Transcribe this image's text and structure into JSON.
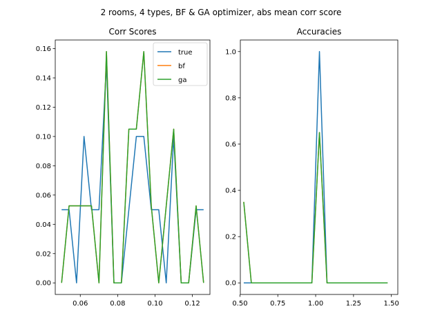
{
  "suptitle": "2 rooms, 4 types, BF & GA optimizer, abs mean corr score",
  "chart_data": [
    {
      "type": "line",
      "title": "Corr Scores",
      "xlim": [
        0.0466,
        0.1294
      ],
      "ylim": [
        -0.0079,
        0.1659
      ],
      "xticks": [
        0.06,
        0.08,
        0.1,
        0.12
      ],
      "xtick_labels": [
        "0.06",
        "0.08",
        "0.10",
        "0.12"
      ],
      "yticks": [
        0.0,
        0.02,
        0.04,
        0.06,
        0.08,
        0.1,
        0.12,
        0.14,
        0.16
      ],
      "ytick_labels": [
        "0.00",
        "0.02",
        "0.04",
        "0.06",
        "0.08",
        "0.10",
        "0.12",
        "0.14",
        "0.16"
      ],
      "legend": "top-right",
      "series": [
        {
          "name": "true",
          "color": "#1f77b4",
          "x": [
            0.05,
            0.054,
            0.058,
            0.062,
            0.066,
            0.07,
            0.074,
            0.078,
            0.082,
            0.086,
            0.09,
            0.094,
            0.098,
            0.102,
            0.106,
            0.11,
            0.114,
            0.118,
            0.122,
            0.126
          ],
          "y": [
            0.05,
            0.05,
            0.0,
            0.1,
            0.05,
            0.05,
            0.15,
            0.0,
            0.0,
            0.05,
            0.1,
            0.1,
            0.05,
            0.05,
            0.0,
            0.1,
            0.0,
            0.0,
            0.05,
            0.05
          ]
        },
        {
          "name": "bf",
          "color": "#ff7f0e",
          "x": [
            0.05,
            0.054,
            0.058,
            0.062,
            0.066,
            0.07,
            0.074,
            0.078,
            0.082,
            0.086,
            0.09,
            0.094,
            0.098,
            0.102,
            0.106,
            0.11,
            0.114,
            0.118,
            0.122,
            0.126
          ],
          "y": [
            0.0,
            0.0526,
            0.0526,
            0.0526,
            0.0526,
            0.0,
            0.158,
            0.0,
            0.0,
            0.105,
            0.105,
            0.158,
            0.0526,
            0.0,
            0.0526,
            0.105,
            0.0,
            0.0,
            0.0526,
            0.0
          ]
        },
        {
          "name": "ga",
          "color": "#2ca02c",
          "x": [
            0.05,
            0.054,
            0.058,
            0.062,
            0.066,
            0.07,
            0.074,
            0.078,
            0.082,
            0.086,
            0.09,
            0.094,
            0.098,
            0.102,
            0.106,
            0.11,
            0.114,
            0.118,
            0.122,
            0.126
          ],
          "y": [
            0.0,
            0.0526,
            0.0526,
            0.0526,
            0.0526,
            0.0,
            0.158,
            0.0,
            0.0,
            0.105,
            0.105,
            0.158,
            0.0526,
            0.0,
            0.0526,
            0.105,
            0.0,
            0.0,
            0.0526,
            0.0
          ]
        }
      ]
    },
    {
      "type": "line",
      "title": "Accuracies",
      "xlim": [
        0.5025,
        1.5425
      ],
      "ylim": [
        -0.05,
        1.05
      ],
      "xticks": [
        0.5,
        0.75,
        1.0,
        1.25,
        1.5
      ],
      "xtick_labels": [
        "0.50",
        "0.75",
        "1.00",
        "1.25",
        "1.50"
      ],
      "yticks": [
        0.0,
        0.2,
        0.4,
        0.6,
        0.8,
        1.0
      ],
      "ytick_labels": [
        "0.0",
        "0.2",
        "0.4",
        "0.6",
        "0.8",
        "1.0"
      ],
      "series": [
        {
          "name": "true",
          "color": "#1f77b4",
          "x": [
            0.525,
            0.575,
            0.625,
            0.675,
            0.725,
            0.775,
            0.825,
            0.875,
            0.925,
            0.975,
            1.025,
            1.075,
            1.125,
            1.175,
            1.225,
            1.275,
            1.325,
            1.375,
            1.425,
            1.475
          ],
          "y": [
            0.0,
            0.0,
            0.0,
            0.0,
            0.0,
            0.0,
            0.0,
            0.0,
            0.0,
            0.0,
            1.0,
            0.0,
            0.0,
            0.0,
            0.0,
            0.0,
            0.0,
            0.0,
            0.0,
            0.0
          ]
        },
        {
          "name": "bf",
          "color": "#ff7f0e",
          "x": [
            0.525,
            0.575,
            0.625,
            0.675,
            0.725,
            0.775,
            0.825,
            0.875,
            0.925,
            0.975,
            1.025,
            1.075,
            1.125,
            1.175,
            1.225,
            1.275,
            1.325,
            1.375,
            1.425,
            1.475
          ],
          "y": [
            0.35,
            0.0,
            0.0,
            0.0,
            0.0,
            0.0,
            0.0,
            0.0,
            0.0,
            0.0,
            0.65,
            0.0,
            0.0,
            0.0,
            0.0,
            0.0,
            0.0,
            0.0,
            0.0,
            0.0
          ]
        },
        {
          "name": "ga",
          "color": "#2ca02c",
          "x": [
            0.525,
            0.575,
            0.625,
            0.675,
            0.725,
            0.775,
            0.825,
            0.875,
            0.925,
            0.975,
            1.025,
            1.075,
            1.125,
            1.175,
            1.225,
            1.275,
            1.325,
            1.375,
            1.425,
            1.475
          ],
          "y": [
            0.35,
            0.0,
            0.0,
            0.0,
            0.0,
            0.0,
            0.0,
            0.0,
            0.0,
            0.0,
            0.65,
            0.0,
            0.0,
            0.0,
            0.0,
            0.0,
            0.0,
            0.0,
            0.0,
            0.0
          ]
        }
      ]
    }
  ]
}
